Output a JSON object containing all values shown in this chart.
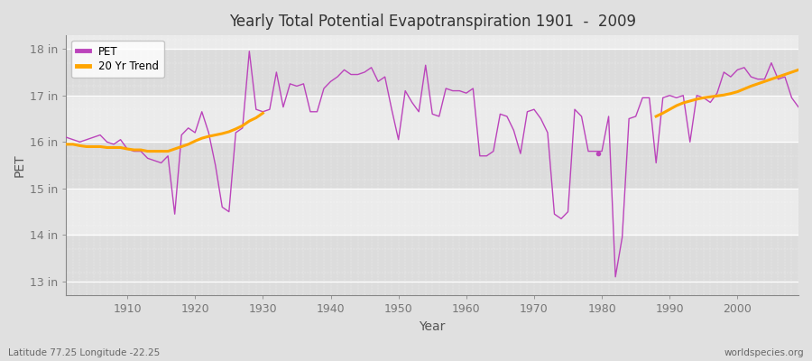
{
  "title": "Yearly Total Potential Evapotranspiration 1901  -  2009",
  "xlabel": "Year",
  "ylabel": "PET",
  "bottom_left": "Latitude 77.25 Longitude -22.25",
  "bottom_right": "worldspecies.org",
  "pet_color": "#BB44BB",
  "trend_color": "#FFA500",
  "background_color": "#E0E0E0",
  "plot_bg_color": "#F2F2F2",
  "ylim": [
    12.7,
    18.3
  ],
  "yticks": [
    13,
    14,
    15,
    16,
    17,
    18
  ],
  "ytick_labels": [
    "13 in",
    "14 in",
    "15 in",
    "16 in",
    "17 in",
    "18 in"
  ],
  "years": [
    1901,
    1902,
    1903,
    1904,
    1905,
    1906,
    1907,
    1908,
    1909,
    1910,
    1911,
    1912,
    1913,
    1914,
    1915,
    1916,
    1917,
    1918,
    1919,
    1920,
    1921,
    1922,
    1923,
    1924,
    1925,
    1926,
    1927,
    1928,
    1929,
    1930,
    1931,
    1932,
    1933,
    1934,
    1935,
    1936,
    1937,
    1938,
    1939,
    1940,
    1941,
    1942,
    1943,
    1944,
    1945,
    1946,
    1947,
    1948,
    1949,
    1950,
    1951,
    1952,
    1953,
    1954,
    1955,
    1956,
    1957,
    1958,
    1959,
    1960,
    1961,
    1962,
    1963,
    1964,
    1965,
    1966,
    1967,
    1968,
    1969,
    1970,
    1971,
    1972,
    1973,
    1974,
    1975,
    1976,
    1977,
    1978,
    1979,
    1980,
    1981,
    1982,
    1983,
    1984,
    1985,
    1986,
    1987,
    1988,
    1989,
    1990,
    1991,
    1992,
    1993,
    1994,
    1995,
    1996,
    1997,
    1998,
    1999,
    2000,
    2001,
    2002,
    2003,
    2004,
    2005,
    2006,
    2007,
    2008,
    2009
  ],
  "pet_values": [
    16.1,
    16.05,
    16.0,
    16.05,
    16.1,
    16.15,
    16.0,
    15.95,
    16.05,
    15.85,
    15.8,
    15.8,
    15.65,
    15.6,
    15.55,
    15.7,
    14.45,
    16.15,
    16.3,
    16.2,
    16.65,
    16.2,
    15.5,
    14.6,
    14.5,
    16.2,
    16.3,
    17.95,
    16.7,
    16.65,
    16.7,
    17.5,
    16.75,
    17.25,
    17.2,
    17.25,
    16.65,
    16.65,
    17.15,
    17.3,
    17.4,
    17.55,
    17.45,
    17.45,
    17.5,
    17.6,
    17.3,
    17.4,
    16.7,
    16.05,
    17.1,
    16.85,
    16.65,
    17.65,
    16.6,
    16.55,
    17.15,
    17.1,
    17.1,
    17.05,
    17.15,
    15.7,
    15.7,
    15.8,
    16.6,
    16.55,
    16.25,
    15.75,
    16.65,
    16.7,
    16.5,
    16.2,
    14.45,
    14.35,
    14.5,
    16.7,
    16.55,
    15.8,
    15.8,
    15.8,
    16.55,
    13.1,
    13.95,
    16.5,
    16.55,
    16.95,
    16.95,
    15.55,
    16.95,
    17.0,
    16.95,
    17.0,
    16.0,
    17.0,
    16.95,
    16.85,
    17.05,
    17.5,
    17.4,
    17.55,
    17.6,
    17.4,
    17.35,
    17.35,
    17.7,
    17.35,
    17.4,
    16.95,
    16.75
  ],
  "trend_seg1_years": [
    1901,
    1902,
    1903,
    1904,
    1905,
    1906,
    1907,
    1908,
    1909,
    1910,
    1911,
    1912,
    1913,
    1914,
    1915,
    1916,
    1917,
    1918,
    1919,
    1920,
    1921,
    1922,
    1923,
    1924,
    1925,
    1926,
    1927,
    1928,
    1929,
    1930
  ],
  "trend_seg1_values": [
    15.95,
    15.95,
    15.92,
    15.9,
    15.9,
    15.9,
    15.88,
    15.88,
    15.88,
    15.85,
    15.83,
    15.83,
    15.8,
    15.8,
    15.8,
    15.8,
    15.85,
    15.9,
    15.95,
    16.02,
    16.08,
    16.12,
    16.15,
    16.18,
    16.22,
    16.28,
    16.35,
    16.45,
    16.52,
    16.62
  ],
  "trend_seg2_years": [
    1988,
    1989,
    1990,
    1991,
    1992,
    1993,
    1994,
    1995,
    1996,
    1997,
    1998,
    1999,
    2000,
    2001,
    2002,
    2003,
    2004,
    2005,
    2006,
    2007,
    2008,
    2009
  ],
  "trend_seg2_values": [
    16.55,
    16.62,
    16.7,
    16.78,
    16.84,
    16.88,
    16.92,
    16.95,
    16.97,
    16.99,
    17.01,
    17.04,
    17.08,
    17.14,
    17.2,
    17.25,
    17.3,
    17.35,
    17.4,
    17.45,
    17.5,
    17.55
  ],
  "dot_year": 1979.5,
  "dot_value": 15.75,
  "dot_color": "#BB44BB"
}
